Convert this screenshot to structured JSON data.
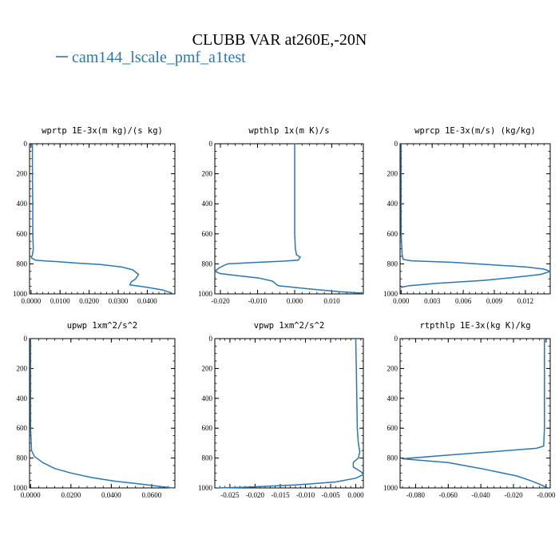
{
  "figure": {
    "title": "CLUBB VAR at260E,-20N",
    "legend": {
      "label": "cam144_lscale_pmf_a1test",
      "color": "#2a77b4"
    }
  },
  "chart_data": [
    {
      "type": "line",
      "title": "wprtp  1E-3x(m kg)/(s kg)",
      "xlim": [
        -0.0005,
        0.0495
      ],
      "ylim": [
        0,
        1000
      ],
      "y_inverted": true,
      "xticks": [
        0.0,
        0.01,
        0.02,
        0.03,
        0.04
      ],
      "xtick_labels": [
        "0.0000",
        "0.0100",
        "0.0200",
        "0.0300",
        "0.0400"
      ],
      "yticks": [
        0,
        200,
        400,
        600,
        800,
        1000
      ],
      "ytick_labels": [
        "0",
        "200",
        "400",
        "600",
        "800",
        "1000"
      ],
      "series": [
        {
          "color": "#2a77b4",
          "x": [
            0.0005,
            0.0005,
            0.0006,
            0.0006,
            0.0008,
            0.0005,
            0.0001,
            0.0015,
            0.0045,
            0.009,
            0.016,
            0.024,
            0.031,
            0.035,
            0.037,
            0.036,
            0.0345,
            0.034,
            0.0395,
            0.0455,
            0.0485
          ],
          "y": [
            0,
            200,
            400,
            600,
            700,
            740,
            760,
            775,
            780,
            785,
            795,
            805,
            820,
            840,
            870,
            900,
            920,
            940,
            955,
            975,
            995
          ]
        }
      ]
    },
    {
      "type": "line",
      "title": "wpthlp  1x(m K)/s",
      "xlim": [
        -0.0215,
        0.0185
      ],
      "ylim": [
        0,
        1000
      ],
      "y_inverted": true,
      "xticks": [
        -0.02,
        -0.01,
        0.0,
        0.01
      ],
      "xtick_labels": [
        "-0.020",
        "-0.010",
        "0.000",
        "0.010"
      ],
      "yticks": [
        0,
        200,
        400,
        600,
        800,
        1000
      ],
      "ytick_labels": [
        "0",
        "200",
        "400",
        "600",
        "800",
        "1000"
      ],
      "series": [
        {
          "color": "#2a77b4",
          "x": [
            0.0,
            0.0,
            0.0,
            0.0,
            0.0002,
            0.0005,
            0.0015,
            0.001,
            -0.003,
            -0.01,
            -0.018,
            -0.019,
            -0.0205,
            -0.0215,
            -0.02,
            -0.015,
            -0.0095,
            -0.006,
            -0.0045,
            0.003,
            0.012,
            0.0185
          ],
          "y": [
            0,
            200,
            400,
            600,
            700,
            740,
            755,
            775,
            782,
            790,
            800,
            810,
            830,
            850,
            865,
            880,
            895,
            915,
            945,
            965,
            985,
            995
          ]
        }
      ]
    },
    {
      "type": "line",
      "title": "wprcp  1E-3x(m/s) (kg/kg)",
      "xlim": [
        -0.0001,
        0.0144
      ],
      "ylim": [
        0,
        1000
      ],
      "y_inverted": true,
      "xticks": [
        0.0,
        0.003,
        0.006,
        0.009,
        0.012
      ],
      "xtick_labels": [
        "0.000",
        "0.003",
        "0.006",
        "0.009",
        "0.012"
      ],
      "yticks": [
        0,
        200,
        400,
        600,
        800,
        1000
      ],
      "ytick_labels": [
        "0",
        "200",
        "400",
        "600",
        "800",
        "1000"
      ],
      "series": [
        {
          "color": "#2a77b4",
          "x": [
            0.0,
            0.0,
            0.0,
            0.0,
            0.0001,
            0.0002,
            0.001,
            0.005,
            0.012,
            0.0138,
            0.0144,
            0.0135,
            0.011,
            0.008,
            0.0035,
            0.0008,
            0.0001,
            0.0
          ],
          "y": [
            0,
            200,
            400,
            600,
            740,
            770,
            780,
            790,
            820,
            835,
            850,
            870,
            890,
            910,
            930,
            945,
            955,
            960
          ]
        }
      ]
    },
    {
      "type": "line",
      "title": "upwp  1xm^2/s^2",
      "xlim": [
        -0.0005,
        0.0715
      ],
      "ylim": [
        0,
        1000
      ],
      "y_inverted": true,
      "xticks": [
        0.0,
        0.02,
        0.04,
        0.06
      ],
      "xtick_labels": [
        "0.0000",
        "0.0200",
        "0.0400",
        "0.0600"
      ],
      "yticks": [
        0,
        200,
        400,
        600,
        800,
        1000
      ],
      "ytick_labels": [
        "0",
        "200",
        "400",
        "600",
        "800",
        "1000"
      ],
      "series": [
        {
          "color": "#2a77b4",
          "x": [
            0.0,
            0.0,
            0.0,
            0.0,
            0.0005,
            0.002,
            0.006,
            0.012,
            0.02,
            0.03,
            0.042,
            0.055,
            0.064,
            0.0705
          ],
          "y": [
            0,
            200,
            400,
            600,
            750,
            790,
            830,
            870,
            900,
            930,
            955,
            975,
            990,
            1000
          ]
        }
      ]
    },
    {
      "type": "line",
      "title": "vpwp  1xm^2/s^2",
      "xlim": [
        -0.028,
        0.0015
      ],
      "ylim": [
        0,
        1000
      ],
      "y_inverted": true,
      "xticks": [
        -0.025,
        -0.02,
        -0.015,
        -0.01,
        -0.005,
        0.0
      ],
      "xtick_labels": [
        "-0.025",
        "-0.020",
        "-0.015",
        "-0.010",
        "-0.005",
        "0.000"
      ],
      "yticks": [
        0,
        200,
        400,
        600,
        800,
        1000
      ],
      "ytick_labels": [
        "0",
        "200",
        "400",
        "600",
        "800",
        "1000"
      ],
      "series": [
        {
          "color": "#2a77b4",
          "x": [
            0.0,
            0.0001,
            0.0002,
            0.0003,
            0.0005,
            0.0008,
            0.0005,
            -0.0005,
            -0.0005,
            0.0005,
            0.0012,
            0.0015,
            0.0,
            -0.004,
            -0.012,
            -0.022,
            -0.0275
          ],
          "y": [
            0,
            200,
            400,
            600,
            700,
            760,
            800,
            830,
            860,
            880,
            895,
            910,
            935,
            960,
            980,
            995,
            1000
          ]
        }
      ]
    },
    {
      "type": "line",
      "title": "rtpthlp  1E-3x(kg K)/kg",
      "xlim": [
        -0.0895,
        0.0025
      ],
      "ylim": [
        0,
        1000
      ],
      "y_inverted": true,
      "xticks": [
        -0.08,
        -0.06,
        -0.04,
        -0.02,
        0.0
      ],
      "xtick_labels": [
        "-0.080",
        "-0.060",
        "-0.040",
        "-0.020",
        "-0.000"
      ],
      "yticks": [
        0,
        200,
        400,
        600,
        800,
        1000
      ],
      "ytick_labels": [
        "0",
        "200",
        "400",
        "600",
        "800",
        "1000"
      ],
      "series": [
        {
          "color": "#2a77b4",
          "x": [
            -0.001,
            -0.001,
            -0.001,
            -0.001,
            -0.0015,
            -0.006,
            -0.03,
            -0.06,
            -0.088,
            -0.06,
            -0.04,
            -0.018,
            -0.01,
            -0.004,
            0.0
          ],
          "y": [
            0,
            200,
            400,
            600,
            720,
            735,
            755,
            780,
            805,
            830,
            870,
            920,
            950,
            975,
            995
          ]
        }
      ]
    }
  ]
}
